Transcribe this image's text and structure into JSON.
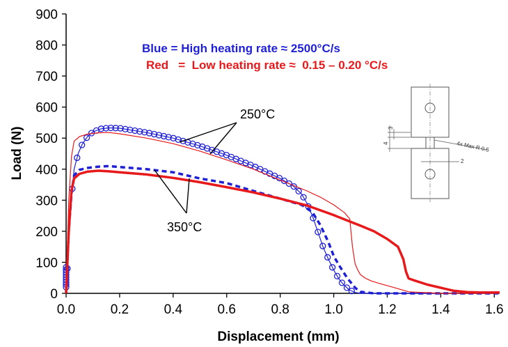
{
  "chart_data": {
    "type": "line",
    "xlabel": "Displacement (mm)",
    "ylabel": "Load (N)",
    "xlim": [
      0,
      1.62
    ],
    "ylim": [
      0,
      900
    ],
    "x_ticks": [
      "0.0",
      "0.2",
      "0.4",
      "0.6",
      "0.8",
      "1.0",
      "1.2",
      "1.4",
      "1.6"
    ],
    "y_ticks": [
      "0",
      "100",
      "200",
      "300",
      "400",
      "500",
      "600",
      "700",
      "800",
      "900"
    ],
    "grid": false,
    "legend": [
      {
        "text": "Blue  =  High heating rate ≈ 2500°C/s",
        "color": "#1f1fd6"
      },
      {
        "text": "Red   =  Low heating rate ≈  0.15 – 0.20 °C/s",
        "color": "#e8191b"
      }
    ],
    "annotations": [
      {
        "text": "250°C"
      },
      {
        "text": "350°C"
      }
    ],
    "inset_labels": [
      "4x Max R 0.5",
      "3",
      "4",
      "2"
    ],
    "series": [
      {
        "color": "#1f1fd6",
        "style": "solid-with-circles",
        "x": [
          0.0,
          0.005,
          0.01,
          0.02,
          0.03,
          0.045,
          0.06,
          0.08,
          0.1,
          0.13,
          0.16,
          0.2,
          0.3,
          0.4,
          0.5,
          0.6,
          0.7,
          0.8,
          0.85,
          0.88,
          0.9,
          0.92,
          0.94,
          0.96,
          0.98,
          1.0,
          1.02,
          1.04,
          1.06,
          1.08,
          1.1,
          1.2,
          1.4,
          1.62
        ],
        "y": [
          0,
          80,
          180,
          310,
          400,
          450,
          480,
          505,
          520,
          530,
          533,
          532,
          518,
          500,
          475,
          445,
          410,
          370,
          345,
          320,
          290,
          250,
          200,
          150,
          110,
          75,
          45,
          25,
          10,
          3,
          0,
          0,
          0,
          0
        ]
      },
      {
        "color": "#1f1fd6",
        "style": "dashed",
        "x": [
          0.0,
          0.005,
          0.01,
          0.02,
          0.03,
          0.05,
          0.08,
          0.12,
          0.16,
          0.2,
          0.3,
          0.4,
          0.5,
          0.6,
          0.7,
          0.8,
          0.88,
          0.92,
          0.95,
          0.98,
          1.0,
          1.02,
          1.05,
          1.08,
          1.1,
          1.15,
          1.2,
          1.4,
          1.62
        ],
        "y": [
          0,
          100,
          200,
          320,
          380,
          398,
          404,
          408,
          410,
          407,
          400,
          390,
          370,
          355,
          330,
          305,
          285,
          262,
          220,
          165,
          120,
          90,
          50,
          18,
          5,
          0,
          0,
          0,
          0
        ]
      },
      {
        "color": "#e8191b",
        "style": "thin",
        "x": [
          0.0,
          0.005,
          0.01,
          0.02,
          0.03,
          0.05,
          0.08,
          0.12,
          0.16,
          0.2,
          0.3,
          0.4,
          0.5,
          0.6,
          0.7,
          0.8,
          0.9,
          0.95,
          1.0,
          1.04,
          1.06,
          1.07,
          1.08,
          1.09,
          1.1,
          1.12,
          1.14,
          1.17,
          1.2,
          1.24,
          1.28,
          1.4,
          1.62
        ],
        "y": [
          0,
          150,
          300,
          440,
          490,
          505,
          513,
          517,
          518,
          514,
          500,
          482,
          458,
          430,
          400,
          365,
          330,
          310,
          285,
          260,
          240,
          150,
          95,
          75,
          60,
          48,
          40,
          32,
          25,
          15,
          5,
          0,
          0
        ]
      },
      {
        "color": "#e8191b",
        "style": "thick",
        "x": [
          0.0,
          0.005,
          0.01,
          0.02,
          0.03,
          0.05,
          0.08,
          0.12,
          0.16,
          0.2,
          0.3,
          0.4,
          0.5,
          0.6,
          0.7,
          0.8,
          0.9,
          1.0,
          1.1,
          1.15,
          1.2,
          1.24,
          1.26,
          1.27,
          1.28,
          1.3,
          1.35,
          1.4,
          1.45,
          1.5,
          1.55,
          1.62
        ],
        "y": [
          0,
          100,
          200,
          330,
          370,
          385,
          392,
          395,
          393,
          390,
          383,
          372,
          358,
          342,
          325,
          305,
          283,
          252,
          218,
          200,
          175,
          150,
          110,
          70,
          48,
          42,
          28,
          18,
          8,
          4,
          3,
          3
        ]
      }
    ]
  }
}
